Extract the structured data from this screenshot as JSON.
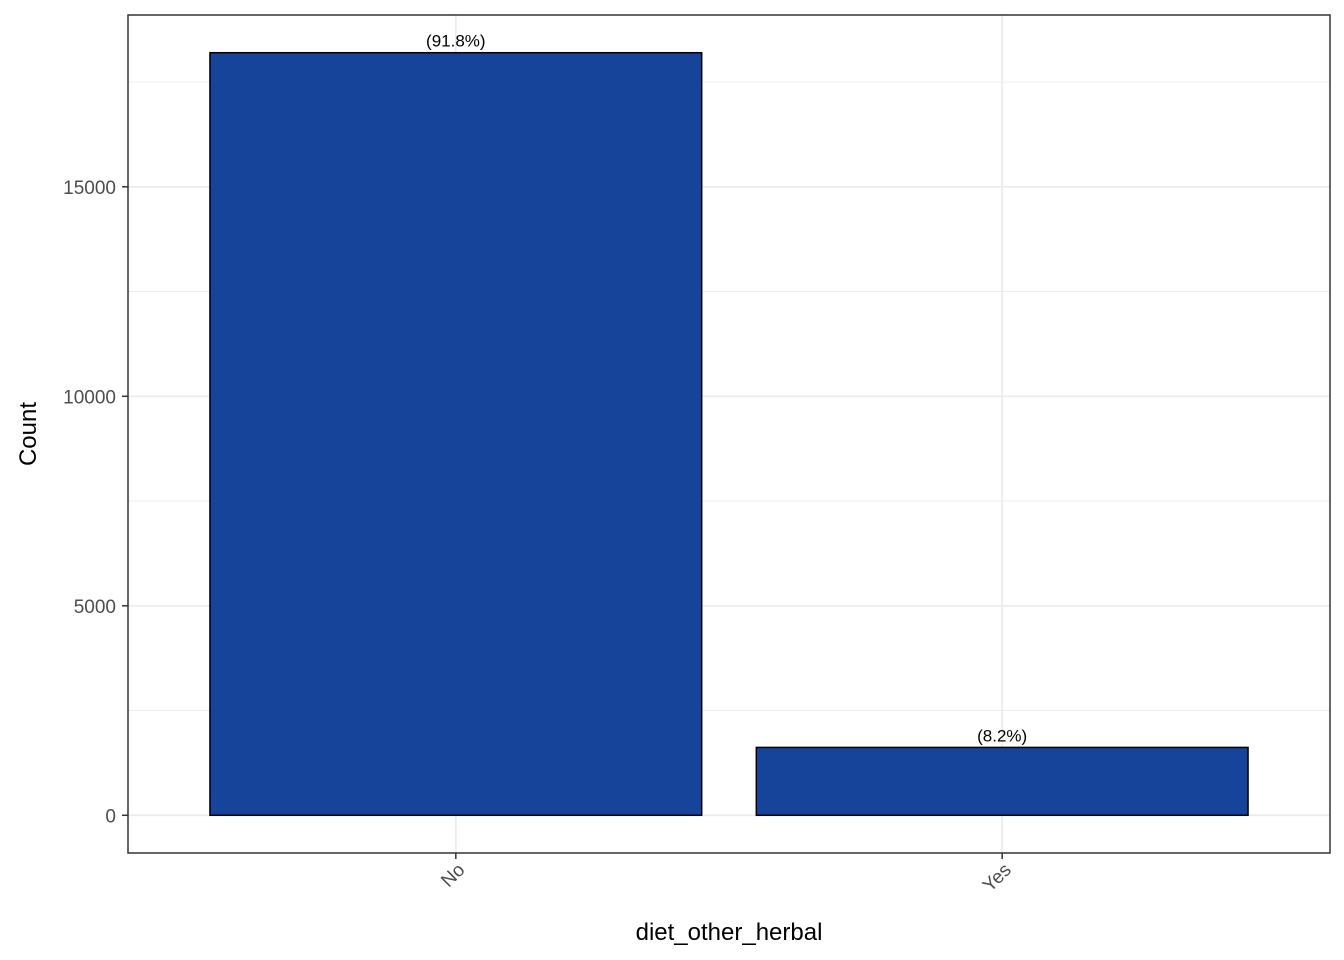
{
  "chart_data": {
    "type": "bar",
    "xlabel": "diet_other_herbal",
    "ylabel": "Count",
    "categories": [
      "No",
      "Yes"
    ],
    "values": [
      18200,
      1620
    ],
    "data_labels": [
      "(91.8%)",
      "(8.2%)"
    ],
    "yticks": [
      0,
      5000,
      10000,
      15000
    ],
    "ytick_labels": [
      "0",
      "5000",
      "10000",
      "15000"
    ],
    "ylim": [
      -900,
      19100
    ],
    "grid": true,
    "x_tick_rotation_deg": 45,
    "colors": {
      "bar_fill": "#17449b",
      "bar_stroke": "#000000",
      "grid": "#ebebeb",
      "panel_border": "#333333",
      "tick_text": "#4d4d4d"
    }
  }
}
